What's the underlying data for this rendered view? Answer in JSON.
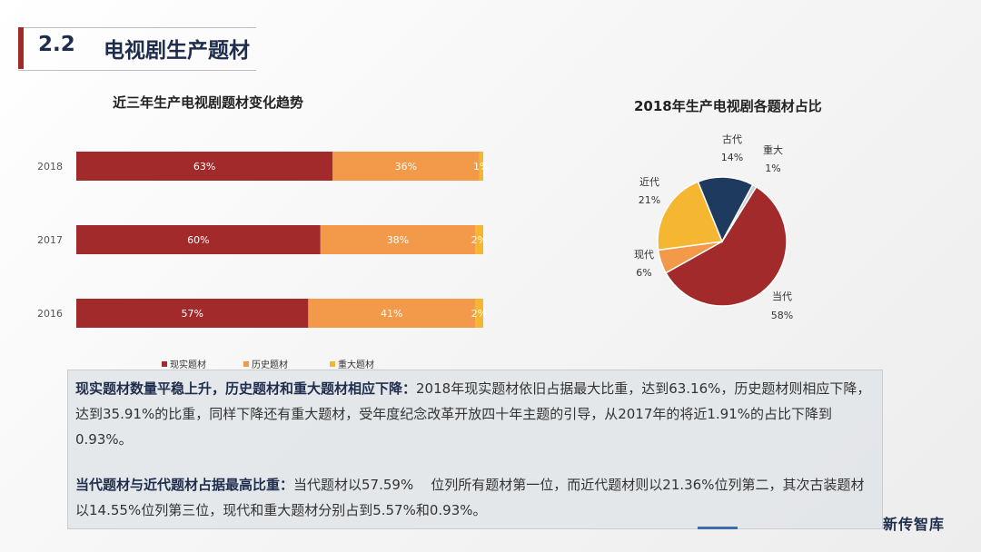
{
  "header": {
    "number": "2.2",
    "title": "电视剧生产题材"
  },
  "chart_data": [
    {
      "type": "bar",
      "orientation": "horizontal",
      "stacked": "100%",
      "title": "近三年生产电视剧题材变化趋势",
      "categories": [
        "2018",
        "2017",
        "2016"
      ],
      "series": [
        {
          "name": "现实题材",
          "color": "#a32a2a",
          "values": [
            63,
            60,
            57
          ],
          "labels": [
            "63%",
            "60%",
            "57%"
          ]
        },
        {
          "name": "历史题材",
          "color": "#f2994a",
          "values": [
            36,
            38,
            41
          ],
          "labels": [
            "36%",
            "38%",
            "41%"
          ]
        },
        {
          "name": "重大题材",
          "color": "#f5b731",
          "values": [
            1,
            2,
            2
          ],
          "labels": [
            "1%",
            "2%",
            "2%"
          ]
        }
      ],
      "legend": "bottom"
    },
    {
      "type": "pie",
      "title": "2018年生产电视剧各题材占比",
      "slices": [
        {
          "name": "当代",
          "value": 58,
          "label": "58%",
          "color": "#a32a2a"
        },
        {
          "name": "现代",
          "value": 6,
          "label": "6%",
          "color": "#f2994a"
        },
        {
          "name": "近代",
          "value": 21,
          "label": "21%",
          "color": "#f5b731"
        },
        {
          "name": "古代",
          "value": 14,
          "label": "14%",
          "color": "#1e3a5f"
        },
        {
          "name": "重大",
          "value": 1,
          "label": "1%",
          "color": "#c5cbd3"
        }
      ]
    }
  ],
  "text": {
    "p1_bold": "现实题材数量平稳上升，历史题材和重大题材相应下降：",
    "p1": "2018年现实题材依旧占据最大比重，达到63.16%，历史题材则相应下降，达到35.91%的比重，同样下降还有重大题材，受年度纪念改革开放四十年主题的引导，从2017年的将近1.91%的占比下降到0.93%。",
    "p2_bold": "当代题材与近代题材占据最高比重：",
    "p2": "当代题材以57.59%    位列所有题材第一位，而近代题材则以21.36%位列第二，其次古装题材以14.55%位列第三位，现代和重大题材分别占到5.57%和0.93%。"
  },
  "watermark": "新传智库"
}
